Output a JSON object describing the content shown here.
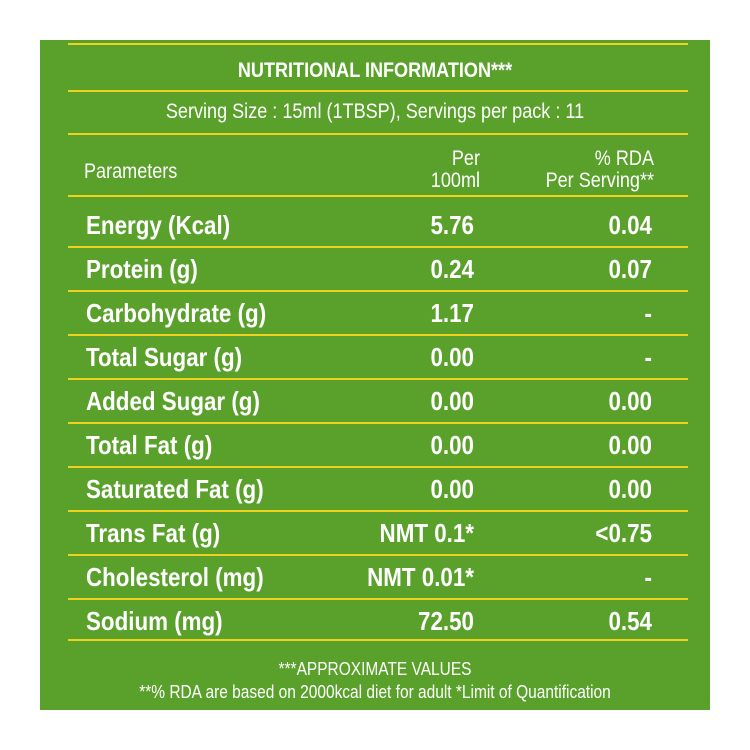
{
  "title": "NUTRITIONAL INFORMATION***",
  "serving": "Serving Size : 15ml (1TBSP),  Servings per pack : 11",
  "headers": {
    "parameters": "Parameters",
    "per_line1": "Per",
    "per_line2": "100ml",
    "rda_line1": "% RDA",
    "rda_line2": "Per Serving**"
  },
  "rows": [
    {
      "name": "Energy (Kcal)",
      "per100": "5.76",
      "rda": "0.04"
    },
    {
      "name": "Protein (g)",
      "per100": "0.24",
      "rda": "0.07"
    },
    {
      "name": "Carbohydrate (g)",
      "per100": "1.17",
      "rda": "-"
    },
    {
      "name": "Total Sugar (g)",
      "per100": "0.00",
      "rda": "-"
    },
    {
      "name": "Added Sugar (g)",
      "per100": "0.00",
      "rda": "0.00"
    },
    {
      "name": "Total Fat (g)",
      "per100": "0.00",
      "rda": "0.00"
    },
    {
      "name": "Saturated Fat (g)",
      "per100": "0.00",
      "rda": "0.00"
    },
    {
      "name": "Trans Fat (g)",
      "per100": "NMT 0.1*",
      "rda": "<0.75"
    },
    {
      "name": "Cholesterol (mg)",
      "per100": "NMT 0.01*",
      "rda": "-"
    },
    {
      "name": "Sodium (mg)",
      "per100": "72.50",
      "rda": "0.54"
    }
  ],
  "footnotes": {
    "approx": "***APPROXIMATE VALUES",
    "rda_note": "**% RDA are based on 2000kcal diet for adult *Limit of Quantification"
  },
  "colors": {
    "panel": "#5aa12b",
    "rule": "#f0d21e",
    "text": "#ffffff"
  }
}
